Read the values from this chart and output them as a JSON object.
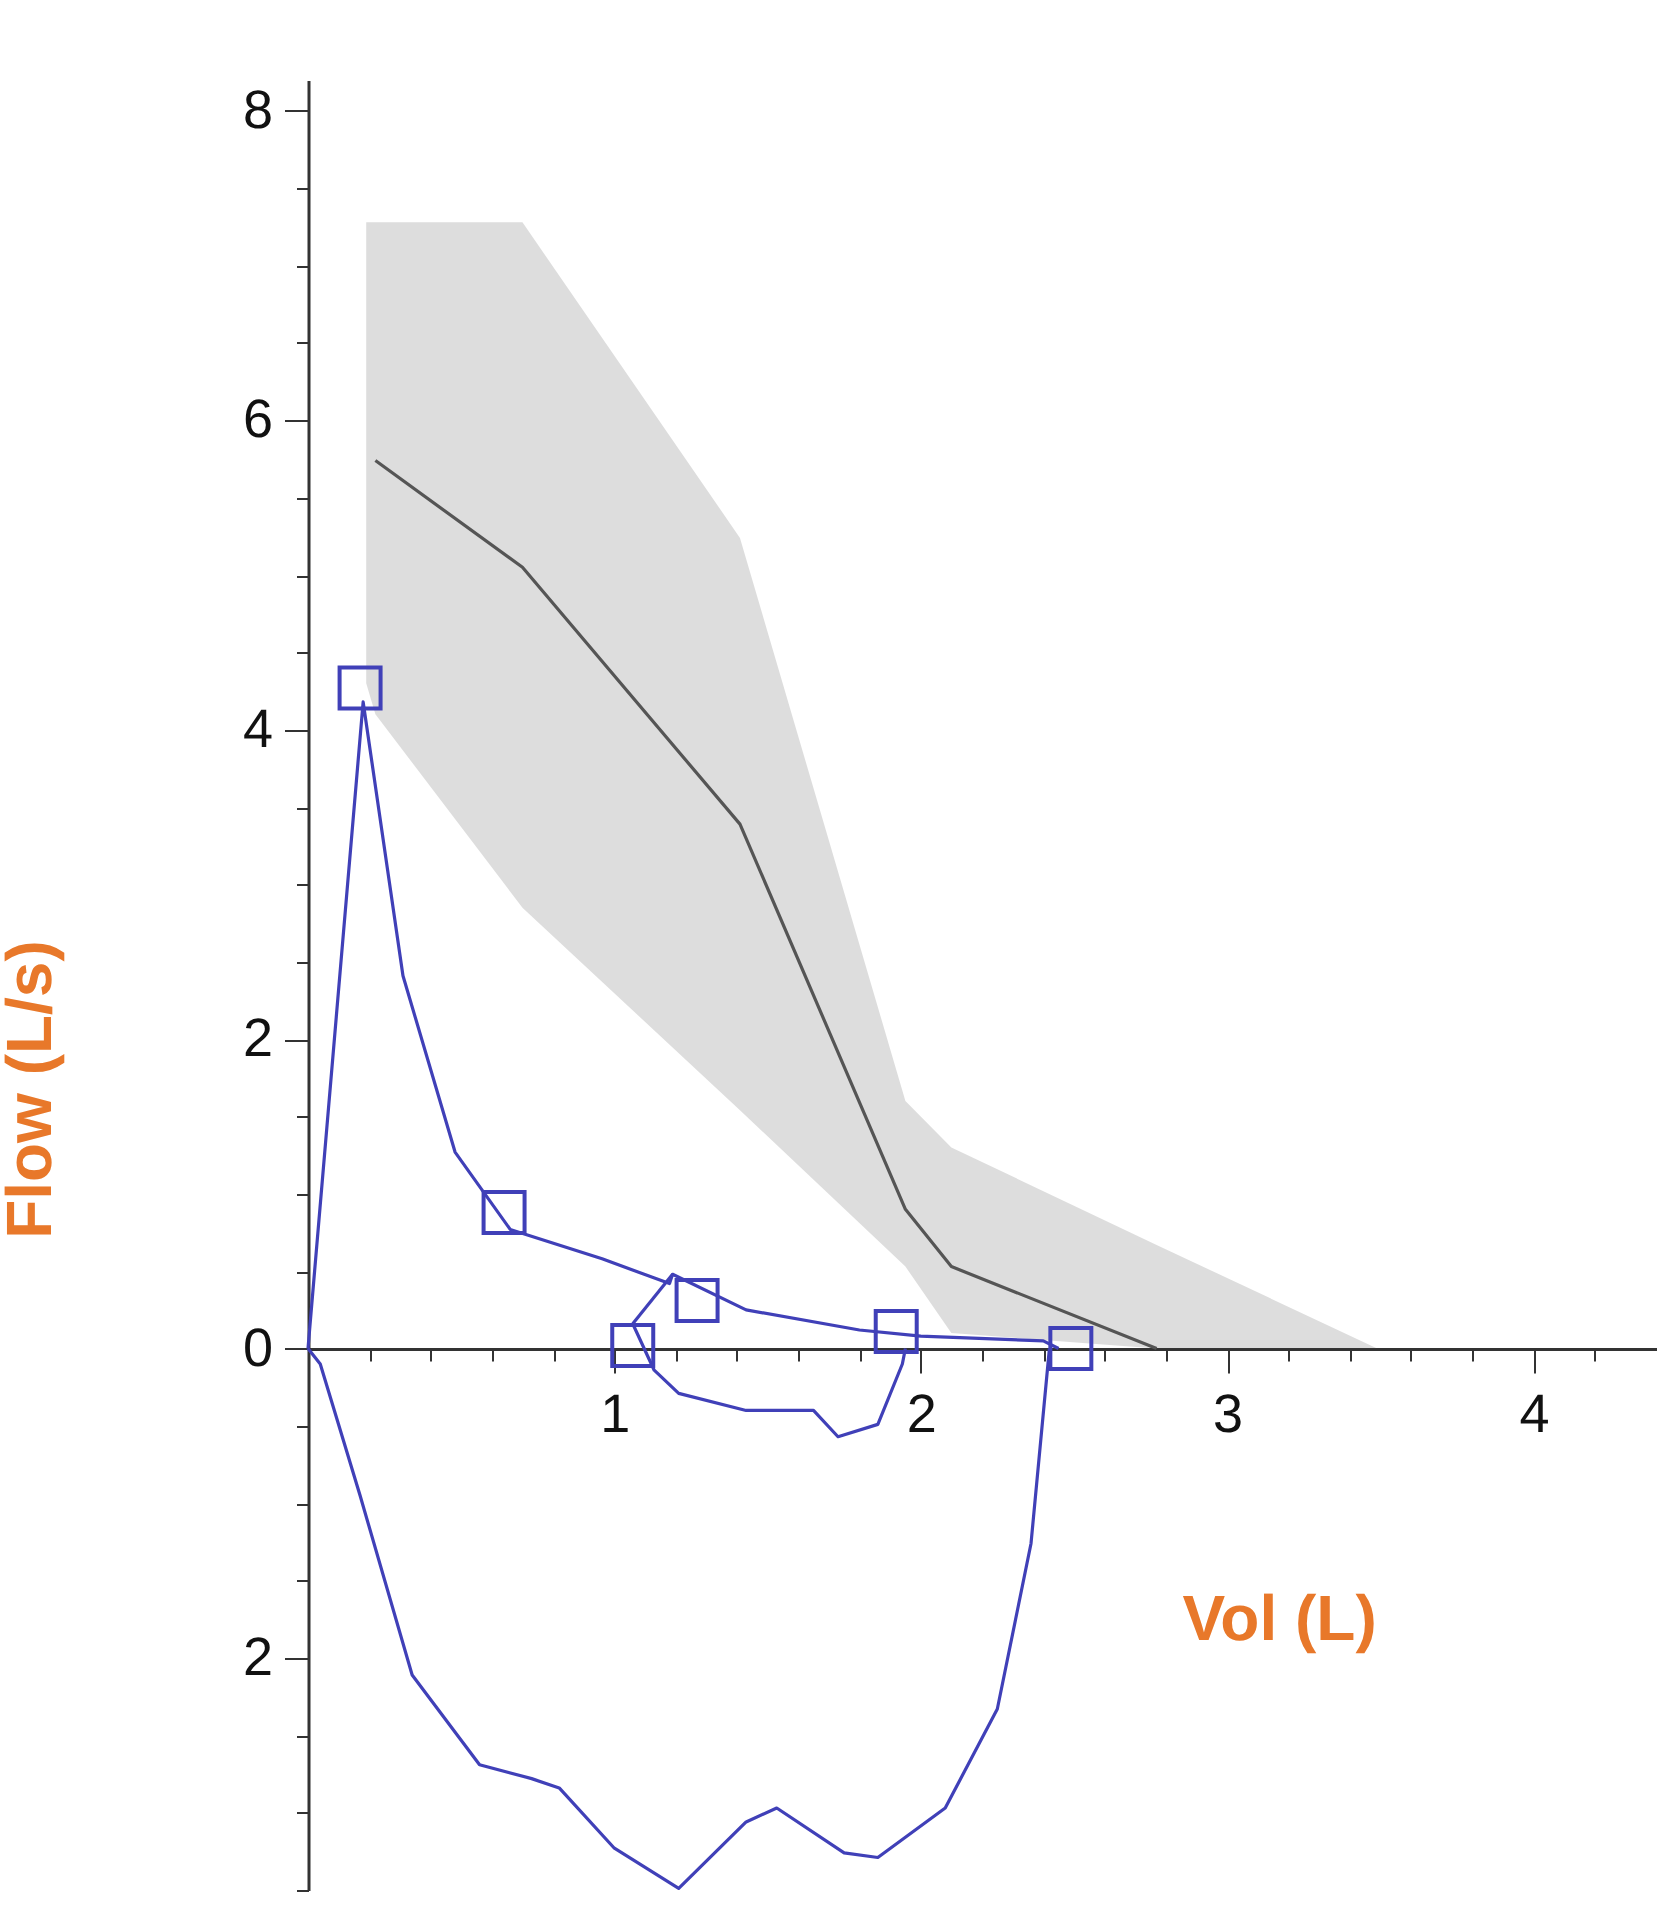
{
  "chart_data": {
    "type": "line",
    "xlabel": "Vol (L)",
    "ylabel": "Flow (L/s)",
    "xlim": [
      0,
      4.4
    ],
    "ylim": [
      -3.5,
      8.2
    ],
    "grid": false,
    "xticks": [
      {
        "value": 0.2,
        "label": null
      },
      {
        "value": 0.4,
        "label": null
      },
      {
        "value": 0.6,
        "label": null
      },
      {
        "value": 0.8,
        "label": null
      },
      1,
      {
        "value": 1.2,
        "label": null
      },
      {
        "value": 1.4,
        "label": null
      },
      {
        "value": 1.6,
        "label": null
      },
      {
        "value": 1.8,
        "label": null
      },
      2,
      {
        "value": 2.2,
        "label": null
      },
      {
        "value": 2.4,
        "label": null
      },
      {
        "value": 2.6,
        "label": null
      },
      {
        "value": 2.8,
        "label": null
      },
      3,
      {
        "value": 3.2,
        "label": null
      },
      {
        "value": 3.4,
        "label": null
      },
      {
        "value": 3.6,
        "label": null
      },
      {
        "value": 3.8,
        "label": null
      },
      4,
      {
        "value": 4.2,
        "label": null
      }
    ],
    "yticks": [
      {
        "value": -3.5,
        "label": null
      },
      {
        "value": -3,
        "label": null
      },
      {
        "value": -2.5,
        "label": null
      },
      {
        "value": -2,
        "label": "2"
      },
      {
        "value": -1.5,
        "label": null
      },
      {
        "value": -1,
        "label": null
      },
      {
        "value": -0.5,
        "label": null
      },
      0,
      {
        "value": 0.5,
        "label": null
      },
      {
        "value": 1,
        "label": null
      },
      {
        "value": 1.5,
        "label": null
      },
      2,
      {
        "value": 2.5,
        "label": null
      },
      {
        "value": 3,
        "label": null
      },
      {
        "value": 3.5,
        "label": null
      },
      4,
      {
        "value": 4.5,
        "label": null
      },
      {
        "value": 5,
        "label": null
      },
      {
        "value": 5.5,
        "label": null
      },
      6,
      {
        "value": 6.5,
        "label": null
      },
      {
        "value": 7,
        "label": null
      },
      {
        "value": 7.5,
        "label": null
      },
      8
    ],
    "series": [
      {
        "type": "line",
        "color": "#555555",
        "marker": "none",
        "x": [
          0.19,
          0.22,
          0.7,
          1.41,
          1.95,
          2.1,
          2.77,
          3.49
        ],
        "values": [
          null,
          5.74,
          5.05,
          3.39,
          0.9,
          0.53,
          0,
          null
        ],
        "lower": [
          4.3,
          4.1,
          2.85,
          1.54,
          0.53,
          0.1,
          0,
          0
        ],
        "upper": [
          7.28,
          7.28,
          7.28,
          5.24,
          1.6,
          1.3,
          0.67,
          0
        ]
      },
      {
        "type": "line",
        "color": "#4040b8",
        "marker": "none",
        "x": [
          0,
          0.18,
          0.31,
          0.48,
          0.66,
          0.96,
          1.18,
          1.19,
          1.43,
          1.8,
          2.0,
          2.4,
          2.45
        ],
        "values": [
          0,
          4.18,
          2.41,
          1.27,
          0.77,
          0.58,
          0.42,
          0.48,
          0.25,
          0.12,
          0.08,
          0.05,
          0
        ]
      },
      {
        "type": "line",
        "color": "#4040b8",
        "marker": "none",
        "x": [
          1.06,
          1.19
        ],
        "values": [
          0.16,
          0.48
        ]
      },
      {
        "type": "line",
        "color": "#4040b8",
        "marker": "none",
        "x": [
          1.06,
          1.13,
          1.21,
          1.43,
          1.65,
          1.73,
          1.86,
          1.94,
          1.95
        ],
        "values": [
          0.16,
          -0.14,
          -0.29,
          -0.4,
          -0.4,
          -0.57,
          -0.49,
          -0.1,
          0
        ]
      },
      {
        "type": "line",
        "color": "#4040b8",
        "marker": "none",
        "x": [
          0,
          0.04,
          0.17,
          0.34,
          0.56,
          0.73,
          0.82,
          1.0,
          1.21,
          1.43,
          1.53,
          1.75,
          1.86,
          2.08,
          2.25,
          2.36,
          2.42
        ],
        "values": [
          0,
          -0.1,
          -0.95,
          -2.11,
          -2.69,
          -2.78,
          -2.84,
          -3.23,
          -3.49,
          -3.06,
          -2.97,
          -3.26,
          -3.29,
          -2.97,
          -2.33,
          -1.26,
          0
        ]
      },
      {
        "type": "scatter",
        "color": "#4040b8",
        "marker": "square",
        "x": [
          0.17,
          0.64,
          1.06,
          1.27,
          1.92,
          2.49
        ],
        "values": [
          4.27,
          0.88,
          0.02,
          0.31,
          0.11,
          0
        ]
      }
    ]
  }
}
